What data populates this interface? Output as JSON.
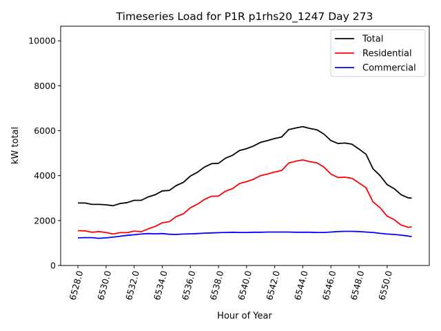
{
  "chart_data": {
    "type": "line",
    "title": "Timeseries Load for P1R p1rhs20_1247  Day 273",
    "xlabel": "Hour of Year",
    "ylabel": "kW total",
    "xlim": [
      6526.77,
      6553.0
    ],
    "ylim": [
      0,
      10650
    ],
    "xticks": [
      6528,
      6530,
      6532,
      6534,
      6536,
      6538,
      6540,
      6542,
      6544,
      6546,
      6548,
      6550
    ],
    "xtick_labels": [
      "6528.0",
      "6530.0",
      "6532.0",
      "6534.0",
      "6536.0",
      "6538.0",
      "6540.0",
      "6542.0",
      "6544.0",
      "6546.0",
      "6548.0",
      "6550.0"
    ],
    "yticks": [
      0,
      2000,
      4000,
      6000,
      8000,
      10000
    ],
    "ytick_labels": [
      "0",
      "2000",
      "4000",
      "6000",
      "8000",
      "10000"
    ],
    "grid": false,
    "legend_position": "top-right",
    "x": [
      6528,
      6528.5,
      6529,
      6529.5,
      6530,
      6530.5,
      6531,
      6531.5,
      6532,
      6532.5,
      6533,
      6533.5,
      6534,
      6534.5,
      6535,
      6535.5,
      6536,
      6536.5,
      6537,
      6537.5,
      6538,
      6538.5,
      6539,
      6539.5,
      6540,
      6540.5,
      6541,
      6541.5,
      6542,
      6542.5,
      6543,
      6543.5,
      6544,
      6544.5,
      6545,
      6545.5,
      6546,
      6546.5,
      6547,
      6547.5,
      6548,
      6548.5,
      6549,
      6549.5,
      6550,
      6550.5,
      6551,
      6551.5,
      6551.75
    ],
    "series": [
      {
        "name": "Total",
        "color": "#000000",
        "values": [
          2780,
          2780,
          2720,
          2720,
          2700,
          2660,
          2760,
          2800,
          2900,
          2900,
          3050,
          3150,
          3320,
          3340,
          3560,
          3700,
          3980,
          4150,
          4380,
          4530,
          4550,
          4780,
          4900,
          5120,
          5200,
          5320,
          5480,
          5560,
          5650,
          5720,
          6050,
          6120,
          6180,
          6100,
          6040,
          5850,
          5560,
          5430,
          5450,
          5400,
          5180,
          4950,
          4300,
          4000,
          3600,
          3420,
          3150,
          3010,
          3000
        ]
      },
      {
        "name": "Residential",
        "color": "#ff0000",
        "values": [
          1550,
          1540,
          1480,
          1510,
          1470,
          1400,
          1460,
          1460,
          1530,
          1500,
          1630,
          1740,
          1900,
          1950,
          2180,
          2300,
          2570,
          2730,
          2940,
          3080,
          3090,
          3310,
          3420,
          3650,
          3730,
          3840,
          4000,
          4070,
          4160,
          4230,
          4560,
          4640,
          4700,
          4620,
          4570,
          4380,
          4070,
          3920,
          3930,
          3880,
          3670,
          3460,
          2830,
          2570,
          2200,
          2040,
          1800,
          1700,
          1720
        ]
      },
      {
        "name": "Commercial",
        "color": "#0000ff",
        "values": [
          1230,
          1240,
          1240,
          1210,
          1230,
          1260,
          1300,
          1340,
          1370,
          1400,
          1420,
          1410,
          1420,
          1390,
          1380,
          1400,
          1410,
          1420,
          1440,
          1450,
          1460,
          1470,
          1480,
          1470,
          1470,
          1480,
          1480,
          1490,
          1490,
          1490,
          1490,
          1480,
          1480,
          1480,
          1470,
          1470,
          1490,
          1510,
          1520,
          1520,
          1510,
          1490,
          1470,
          1430,
          1400,
          1380,
          1350,
          1310,
          1280
        ]
      }
    ]
  }
}
